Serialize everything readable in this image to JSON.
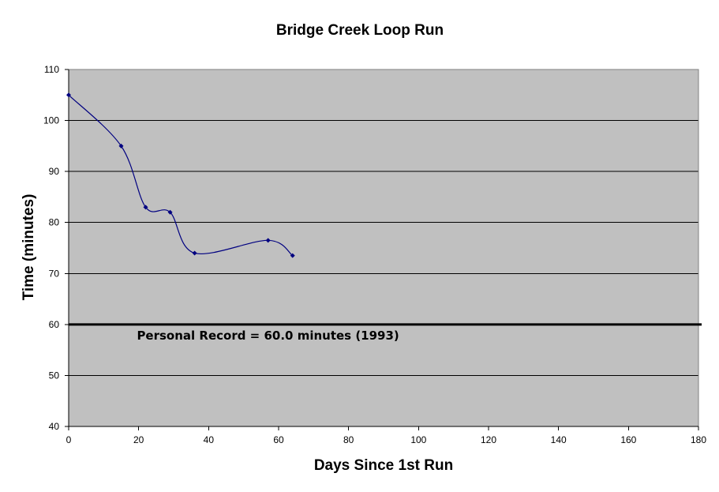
{
  "chart_data": {
    "type": "line",
    "title": "Bridge Creek Loop Run",
    "xlabel": "Days Since 1st Run",
    "ylabel": "Time (minutes)",
    "xlim": [
      0,
      180
    ],
    "ylim": [
      40,
      110
    ],
    "x_ticks": [
      0,
      20,
      40,
      60,
      80,
      100,
      120,
      140,
      160,
      180
    ],
    "y_ticks": [
      40,
      50,
      60,
      70,
      80,
      90,
      100,
      110
    ],
    "grid": "horizontal",
    "legend": "none",
    "series": [
      {
        "x": [
          0,
          15,
          22,
          29,
          36,
          57,
          64
        ],
        "y": [
          105,
          95,
          83,
          82,
          74,
          76.5,
          73.5
        ],
        "color": "#000080",
        "smoothed": true
      }
    ],
    "reference_line": {
      "y": 60,
      "label": "Personal Record = 60.0 minutes (1993)",
      "color": "#000000"
    },
    "colors": {
      "plot_background": "#c0c0c0",
      "gridline": "#000000",
      "series": "#000080"
    }
  }
}
